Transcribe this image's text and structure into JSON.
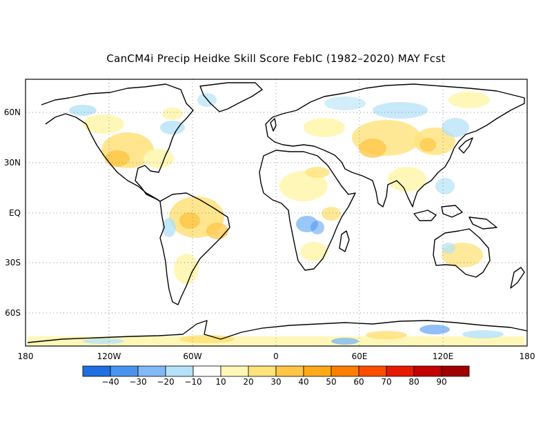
{
  "title": "CanCM4i Precip Heidke Skill Score FebIC (1982–2020) MAY Fcst",
  "map": {
    "projection": "equirectangular",
    "lon_range": [
      -180,
      180
    ],
    "lat_range": [
      -80,
      80
    ],
    "grid": "dotted",
    "lat_ticks": [
      {
        "value": 60,
        "label": "60N"
      },
      {
        "value": 30,
        "label": "30N"
      },
      {
        "value": 0,
        "label": "EQ"
      },
      {
        "value": -30,
        "label": "30S"
      },
      {
        "value": -60,
        "label": "60S"
      }
    ],
    "lon_ticks": [
      {
        "value": -180,
        "label": "180"
      },
      {
        "value": -120,
        "label": "120W"
      },
      {
        "value": -60,
        "label": "60W"
      },
      {
        "value": 0,
        "label": "0"
      },
      {
        "value": 60,
        "label": "60E"
      },
      {
        "value": 120,
        "label": "120E"
      },
      {
        "value": 180,
        "label": "180"
      }
    ]
  },
  "colorbar": {
    "colors": [
      "#1f6fe0",
      "#4a94ef",
      "#80b9f5",
      "#b4e2f8",
      "#ffffff",
      "#fff7b8",
      "#ffe27a",
      "#ffc645",
      "#ffa81a",
      "#ff7f00",
      "#ff4d00",
      "#e51a00",
      "#c40000",
      "#a00000"
    ],
    "labels": [
      "−40",
      "−30",
      "−20",
      "−10",
      "10",
      "20",
      "30",
      "40",
      "50",
      "60",
      "70",
      "80",
      "90"
    ]
  }
}
